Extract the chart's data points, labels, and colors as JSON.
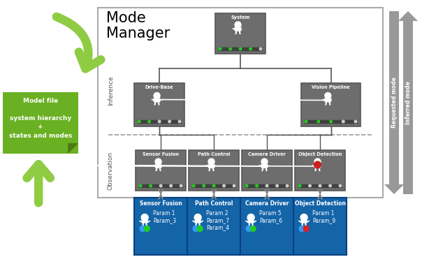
{
  "bg_color": "#ffffff",
  "title": "Mode\nManager",
  "gray_box_color": "#6d6d6d",
  "gray_box_edge": "#555555",
  "blue_box_color": "#1464a8",
  "blue_box_edge": "#0a4080",
  "green_box_color": "#6ab023",
  "green_box_edge": "#5a9018",
  "green_dark": "#4a7a10",
  "green_arrow_color": "#8fcc44",
  "gray_arrow_color": "#888888",
  "white": "#ffffff",
  "frame_bg": "#ffffff",
  "frame_edge": "#aaaaaa",
  "system_label": "System",
  "drive_base_label": "Drive-Base",
  "vision_pipeline_label": "Vision Pipeline",
  "leaf_labels": [
    "Sensor Fusion",
    "Path Control",
    "Camera Driver",
    "Object Detection"
  ],
  "blue_labels": [
    "Sensor Fusion",
    "Path Control",
    "Camera Driver",
    "Object Detection"
  ],
  "blue_params": [
    [
      "Param 1",
      "Param_3"
    ],
    [
      "Param 2",
      "Param_7",
      "Param_4"
    ],
    [
      "Param 5",
      "Param_6"
    ],
    [
      "Param 1",
      "Param_9"
    ]
  ],
  "blue_dot_colors": [
    "#22cc22",
    "#22cc22",
    "#22cc22",
    "#dd2222"
  ],
  "inference_label": "Inference",
  "observation_label": "Observation",
  "requested_label": "Requested mode",
  "inferred_label": "Inferred mode",
  "model_file_text": "Model file\n\nsystem hierarchy\n+\nstates and modes",
  "sys_green_dots": 4,
  "db_green_dots": 2,
  "vp_green_dots": 3,
  "leaf_green_dots": [
    2,
    3,
    2,
    1
  ]
}
